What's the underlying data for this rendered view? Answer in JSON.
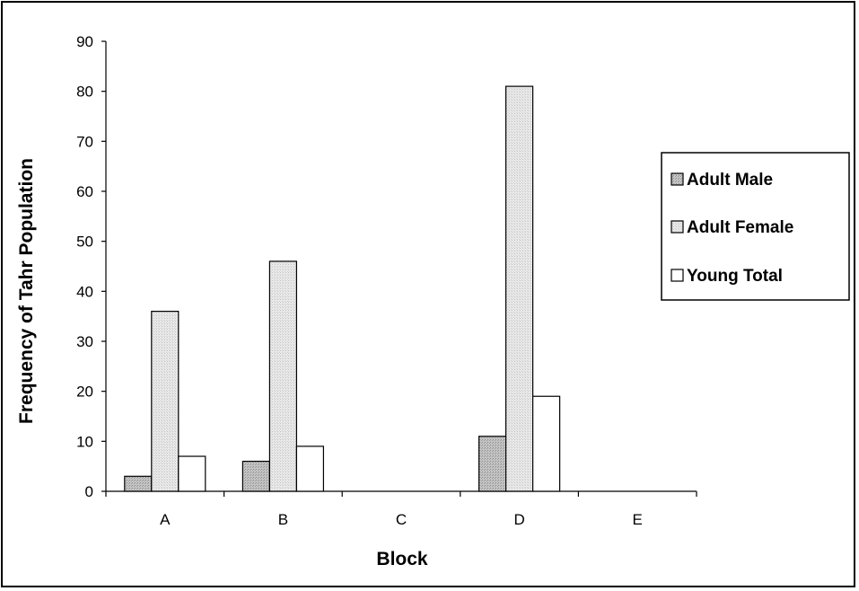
{
  "chart_data": {
    "type": "bar",
    "categories": [
      "A",
      "B",
      "C",
      "D",
      "E"
    ],
    "series": [
      {
        "name": "Adult Male",
        "values": [
          3,
          6,
          0,
          11,
          0
        ],
        "color": "#c0c0c0",
        "pattern": "dark-dotted"
      },
      {
        "name": "Adult Female",
        "values": [
          36,
          46,
          0,
          81,
          0
        ],
        "color": "#e4e4e4",
        "pattern": "light-dotted"
      },
      {
        "name": "Young Total",
        "values": [
          7,
          9,
          0,
          19,
          0
        ],
        "color": "#ffffff",
        "pattern": "none"
      }
    ],
    "xlabel": "Block",
    "ylabel": "Frequency of Tahr Population",
    "ylim": [
      0,
      90
    ],
    "yticks": [
      0,
      10,
      20,
      30,
      40,
      50,
      60,
      70,
      80,
      90
    ],
    "grid": false,
    "legend": "right"
  }
}
